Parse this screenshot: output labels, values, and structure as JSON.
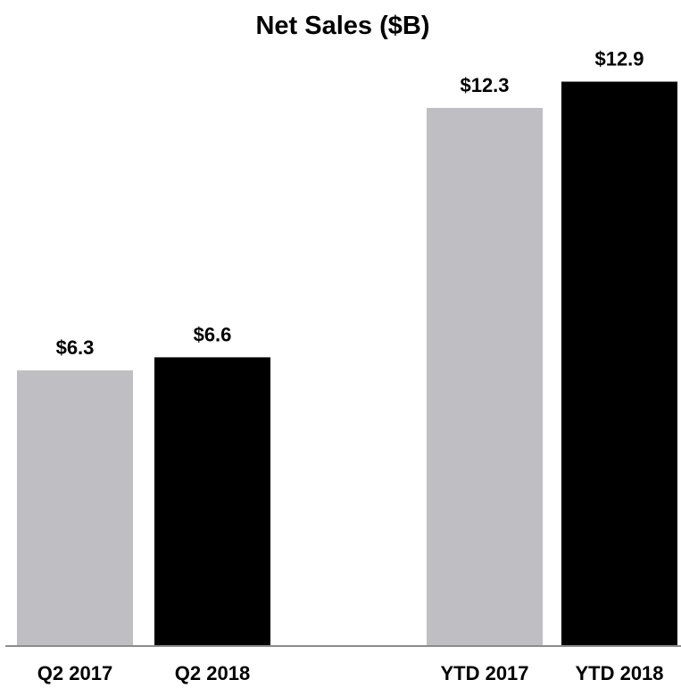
{
  "chart_data": {
    "type": "bar",
    "title": "Net Sales ($B)",
    "xlabel": "",
    "ylabel": "",
    "categories": [
      "Q2 2017",
      "Q2 2018",
      "YTD 2017",
      "YTD 2018"
    ],
    "values": [
      6.3,
      6.6,
      12.3,
      12.9
    ],
    "data_labels": [
      "$6.3",
      "$6.6",
      "$12.3",
      "$12.9"
    ],
    "bar_colors": [
      "#bfbec3",
      "#000000",
      "#bfbec3",
      "#000000"
    ],
    "axis_color": "#8c8c8c",
    "ylim": [
      0,
      13.4
    ],
    "grid": false,
    "legend": "none"
  }
}
